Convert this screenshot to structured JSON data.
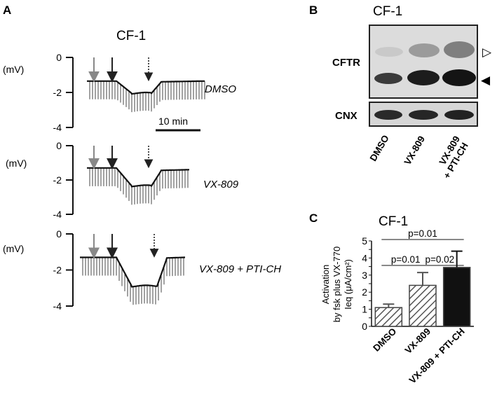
{
  "panel_a": {
    "letter": "A",
    "title": "CF-1",
    "unit_label": "(mV)",
    "scale_bar_label": "10 min",
    "traces": [
      {
        "condition": "DMSO",
        "ticks": [
          "0",
          "-2",
          "-4"
        ],
        "baseline": -1.35,
        "after_fsk": -2.05,
        "after_inh": -1.4
      },
      {
        "condition": "VX-809",
        "ticks": [
          "0",
          "-2",
          "-4"
        ],
        "baseline": -1.3,
        "after_fsk": -2.35,
        "after_inh": -1.45
      },
      {
        "condition": "VX-809 + PTI-CH",
        "ticks": [
          "0",
          "-2",
          "-4"
        ],
        "baseline": -1.3,
        "after_fsk": -2.9,
        "after_inh": -1.35
      }
    ]
  },
  "panel_b": {
    "letter": "B",
    "title": "CF-1",
    "bands": [
      "CFTR",
      "CNX"
    ],
    "lanes": [
      {
        "line1": "DMSO",
        "line2": ""
      },
      {
        "line1": "VX-809",
        "line2": ""
      },
      {
        "line1": "VX-809",
        "line2": "+ PTI-CH"
      }
    ],
    "markers": {
      "open": "▷",
      "filled": "◀"
    }
  },
  "panel_c": {
    "letter": "C",
    "title": "CF-1",
    "ylabel_lines": [
      "Activation",
      "by fsk  plus VX-770",
      "Ieq (μA/cm²)"
    ]
  },
  "chart_data": {
    "type": "bar",
    "title": "CF-1",
    "categories": [
      "DMSO",
      "VX-809",
      "VX-809 + PTI-CH"
    ],
    "values": [
      1.1,
      2.4,
      3.45
    ],
    "errors": [
      0.2,
      0.75,
      0.95
    ],
    "patterns": [
      "hatched",
      "hatched",
      "solid"
    ],
    "ylim": [
      0,
      5
    ],
    "yticks": [
      "0",
      "0.5",
      "1",
      "1.5",
      "2",
      "2.5",
      "3",
      "3.5",
      "4",
      "4.5",
      "5"
    ],
    "comparisons": [
      {
        "pair": [
          0,
          1
        ],
        "label": "p=0.01"
      },
      {
        "pair": [
          1,
          2
        ],
        "label": "p=0.02"
      },
      {
        "pair": [
          0,
          2
        ],
        "label": "p=0.01"
      }
    ]
  }
}
